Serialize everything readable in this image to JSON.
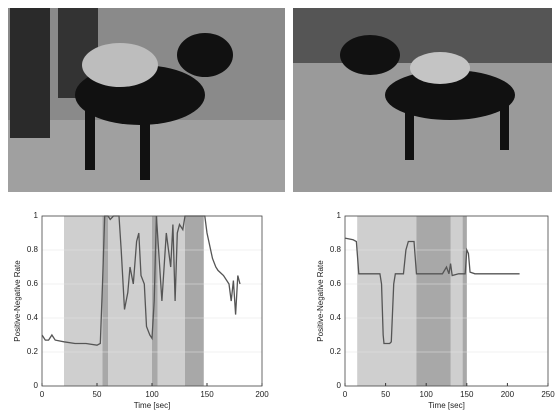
{
  "chart_data": [
    {
      "type": "line",
      "xlabel": "Time [sec]",
      "ylabel": "Positive-Negative Rate",
      "color": "#555555",
      "xlim": [
        0,
        200
      ],
      "xticks": [
        0,
        50,
        100,
        150,
        200
      ],
      "ylim": [
        0,
        1
      ],
      "yticks": [
        0,
        0.2,
        0.4,
        0.6,
        0.8,
        1
      ],
      "grid": true,
      "shaded_spans": [
        {
          "start": 20,
          "end": 147,
          "color": "#cfcfcf"
        },
        {
          "start": 55,
          "end": 60,
          "color": "#a8a8a8"
        },
        {
          "start": 100,
          "end": 105,
          "color": "#a8a8a8"
        },
        {
          "start": 130,
          "end": 147,
          "color": "#a8a8a8"
        }
      ],
      "x": [
        0,
        3,
        6,
        9,
        12,
        20,
        30,
        40,
        50,
        53,
        55,
        57,
        60,
        62,
        65,
        70,
        72,
        75,
        78,
        80,
        83,
        86,
        88,
        90,
        93,
        95,
        98,
        100,
        102,
        104,
        107,
        109,
        111,
        113,
        115,
        117,
        119,
        121,
        123,
        125,
        128,
        130,
        140,
        145,
        148,
        150,
        155,
        158,
        160,
        165,
        170,
        172,
        174,
        176,
        178,
        180
      ],
      "values": [
        0.3,
        0.27,
        0.27,
        0.3,
        0.27,
        0.26,
        0.25,
        0.25,
        0.24,
        0.25,
        0.6,
        1,
        1,
        0.98,
        1,
        1,
        0.8,
        0.45,
        0.55,
        0.7,
        0.6,
        0.85,
        0.9,
        0.65,
        0.6,
        0.35,
        0.3,
        0.28,
        0.5,
        1,
        0.7,
        0.5,
        0.7,
        0.9,
        0.8,
        0.7,
        0.95,
        0.5,
        0.9,
        0.95,
        0.92,
        1,
        1,
        1,
        1,
        0.9,
        0.75,
        0.7,
        0.68,
        0.65,
        0.6,
        0.5,
        0.62,
        0.42,
        0.65,
        0.6
      ]
    },
    {
      "type": "line",
      "xlabel": "Time [sec]",
      "ylabel": "Positive-Negative Rate",
      "color": "#555555",
      "xlim": [
        0,
        250
      ],
      "xticks": [
        0,
        50,
        100,
        150,
        200,
        250
      ],
      "ylim": [
        0,
        1
      ],
      "yticks": [
        0,
        0.2,
        0.4,
        0.6,
        0.8,
        1
      ],
      "grid": true,
      "shaded_spans": [
        {
          "start": 15,
          "end": 150,
          "color": "#cfcfcf"
        },
        {
          "start": 88,
          "end": 130,
          "color": "#a8a8a8"
        },
        {
          "start": 145,
          "end": 150,
          "color": "#a8a8a8"
        }
      ],
      "x": [
        0,
        10,
        14,
        17,
        30,
        43,
        45,
        47,
        48,
        55,
        57,
        60,
        62,
        72,
        75,
        78,
        85,
        88,
        120,
        125,
        128,
        130,
        132,
        140,
        148,
        150,
        152,
        154,
        160,
        215
      ],
      "values": [
        0.87,
        0.86,
        0.85,
        0.66,
        0.66,
        0.66,
        0.6,
        0.3,
        0.25,
        0.25,
        0.26,
        0.6,
        0.66,
        0.66,
        0.8,
        0.85,
        0.85,
        0.66,
        0.66,
        0.7,
        0.66,
        0.72,
        0.65,
        0.66,
        0.66,
        0.8,
        0.78,
        0.67,
        0.66,
        0.66
      ]
    }
  ]
}
